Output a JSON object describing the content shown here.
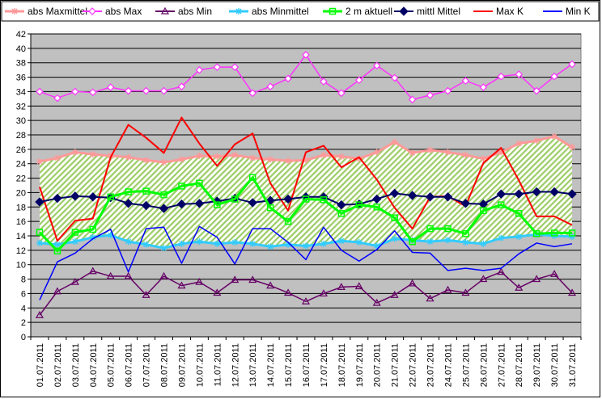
{
  "chart_data": {
    "type": "line",
    "title": "",
    "xlabel": "",
    "ylabel": "",
    "ylim": [
      0,
      42
    ],
    "y_ticks": [
      0,
      2,
      4,
      6,
      8,
      10,
      12,
      14,
      16,
      18,
      20,
      22,
      24,
      26,
      28,
      30,
      32,
      34,
      36,
      38,
      40,
      42
    ],
    "grid": "horizontal",
    "legend_position": "top",
    "categories": [
      "01.07.2011",
      "02.07.2011",
      "03.07.2011",
      "04.07.2011",
      "05.07.2011",
      "06.07.2011",
      "07.07.2011",
      "08.07.2011",
      "09.07.2011",
      "10.07.2011",
      "11.07.2011",
      "12.07.2011",
      "13.07.2011",
      "14.07.2011",
      "15.07.2011",
      "16.07.2011",
      "17.07.2011",
      "18.07.2011",
      "19.07.2011",
      "20.07.2011",
      "21.07.2011",
      "22.07.2011",
      "23.07.2011",
      "24.07.2011",
      "25.07.2011",
      "26.07.2011",
      "27.07.2011",
      "28.07.2011",
      "29.07.2011",
      "30.07.2011",
      "31.07.2011"
    ],
    "band": {
      "upper_series": "abs Maxmittel",
      "lower_series": "abs Minmittel",
      "fill": "#9ccc65",
      "pattern": "diagonal-hatch"
    },
    "series": [
      {
        "name": "abs Maxmittel",
        "color": "#ff9999",
        "marker": "star",
        "values": [
          24.3,
          24.8,
          25.6,
          25.3,
          25.1,
          24.9,
          24.5,
          24.2,
          24.6,
          25.1,
          25.0,
          25.2,
          24.8,
          24.6,
          24.4,
          24.5,
          25.2,
          25.0,
          24.7,
          25.6,
          27.0,
          25.5,
          25.9,
          25.6,
          25.2,
          24.7,
          25.6,
          26.8,
          27.2,
          27.8,
          26.3
        ]
      },
      {
        "name": "abs Max",
        "color": "#ff33ff",
        "marker": "diamond-open",
        "values": [
          34.0,
          33.1,
          34.0,
          33.9,
          34.6,
          34.1,
          34.1,
          34.1,
          34.7,
          37.0,
          37.4,
          37.4,
          33.8,
          34.7,
          35.8,
          39.1,
          35.4,
          33.8,
          35.6,
          37.6,
          35.9,
          32.9,
          33.5,
          34.1,
          35.5,
          34.6,
          36.1,
          36.4,
          34.1,
          36.1,
          37.8
        ]
      },
      {
        "name": "abs Min",
        "color": "#660066",
        "marker": "triangle-open",
        "values": [
          3.0,
          6.3,
          7.6,
          9.1,
          8.4,
          8.4,
          5.8,
          8.4,
          7.1,
          7.6,
          6.1,
          7.9,
          7.9,
          7.1,
          6.1,
          4.9,
          6.0,
          6.9,
          7.0,
          4.7,
          5.8,
          7.4,
          5.3,
          6.5,
          6.1,
          8.0,
          9.0,
          6.8,
          8.0,
          8.7,
          6.1
        ]
      },
      {
        "name": "abs Minmittel",
        "color": "#33ccff",
        "marker": "star",
        "values": [
          13.0,
          12.8,
          13.2,
          13.8,
          14.1,
          13.2,
          12.8,
          12.3,
          12.9,
          13.2,
          12.9,
          13.1,
          12.9,
          12.5,
          12.8,
          12.6,
          12.9,
          13.3,
          13.1,
          12.6,
          13.6,
          13.4,
          13.2,
          13.4,
          13.1,
          12.9,
          13.7,
          13.9,
          14.2,
          14.0,
          13.9
        ]
      },
      {
        "name": "2 m aktuell",
        "color": "#00ff00",
        "marker": "square-open",
        "values": [
          14.5,
          11.9,
          14.5,
          14.9,
          19.4,
          20.1,
          20.2,
          19.7,
          20.9,
          21.3,
          18.3,
          19.1,
          22.1,
          17.9,
          16.0,
          19.1,
          19.0,
          17.1,
          18.3,
          18.0,
          16.5,
          13.2,
          15.0,
          15.0,
          14.3,
          17.5,
          18.3,
          17.1,
          14.3,
          14.4,
          14.4
        ]
      },
      {
        "name": "mittl Mittel",
        "color": "#000066",
        "marker": "diamond-filled",
        "values": [
          18.7,
          19.2,
          19.5,
          19.4,
          19.3,
          18.5,
          18.2,
          17.8,
          18.4,
          18.5,
          18.8,
          19.2,
          18.6,
          18.9,
          19.1,
          19.4,
          19.4,
          18.3,
          18.4,
          19.1,
          19.9,
          19.6,
          19.4,
          19.4,
          18.5,
          18.4,
          19.8,
          19.8,
          20.1,
          20.1,
          19.8
        ]
      },
      {
        "name": "Max K",
        "color": "#ff0000",
        "marker": "none",
        "values": [
          20.8,
          13.3,
          16.1,
          16.4,
          24.9,
          29.4,
          27.6,
          25.5,
          30.4,
          26.8,
          23.7,
          26.7,
          28.2,
          21.3,
          17.5,
          25.6,
          26.5,
          23.5,
          24.9,
          21.8,
          17.9,
          15.0,
          19.4,
          19.5,
          18.1,
          24.1,
          26.2,
          21.7,
          16.7,
          16.7,
          15.5
        ]
      },
      {
        "name": "Min K",
        "color": "#0000ff",
        "marker": "none",
        "values": [
          5.1,
          10.4,
          11.6,
          13.6,
          14.9,
          9.0,
          15.0,
          15.2,
          10.2,
          15.3,
          13.8,
          10.1,
          15.0,
          15.0,
          13.1,
          10.7,
          15.2,
          12.0,
          10.5,
          12.1,
          14.7,
          11.7,
          11.6,
          9.2,
          9.5,
          9.2,
          9.5,
          11.5,
          13.0,
          12.5,
          12.9
        ]
      }
    ]
  }
}
